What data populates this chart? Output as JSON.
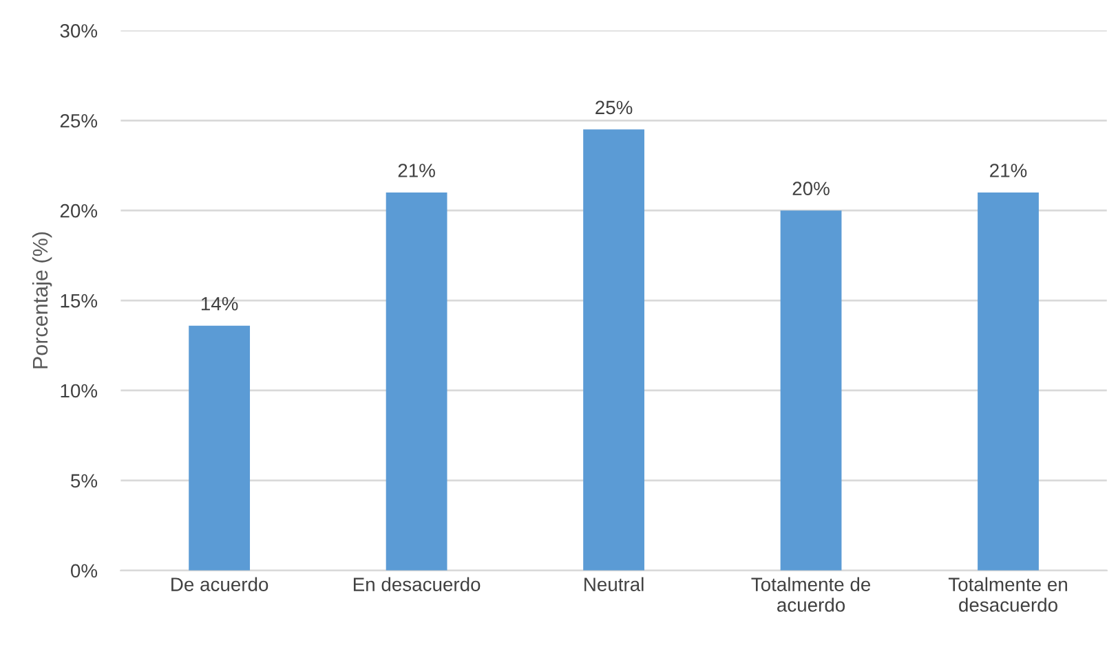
{
  "chart_data": {
    "type": "bar",
    "ylabel": "Porcentaje (%)",
    "categories": [
      "De acuerdo",
      "En desacuerdo",
      "Neutral",
      "Totalmente de\nacuerdo",
      "Totalmente en\ndesacuerdo"
    ],
    "values": [
      13.6,
      21.0,
      24.5,
      20.0,
      21.0
    ],
    "value_labels": [
      "14%",
      "21%",
      "25%",
      "20%",
      "21%"
    ],
    "color": "#5b9bd5",
    "ylim": [
      0,
      30
    ],
    "yticks": [
      {
        "value": 0,
        "label": "0%"
      },
      {
        "value": 5,
        "label": "5%"
      },
      {
        "value": 10,
        "label": "10%"
      },
      {
        "value": 15,
        "label": "15%"
      },
      {
        "value": 20,
        "label": "20%"
      },
      {
        "value": 25,
        "label": "25%"
      },
      {
        "value": 30,
        "label": "30%"
      }
    ],
    "grid": "y"
  }
}
